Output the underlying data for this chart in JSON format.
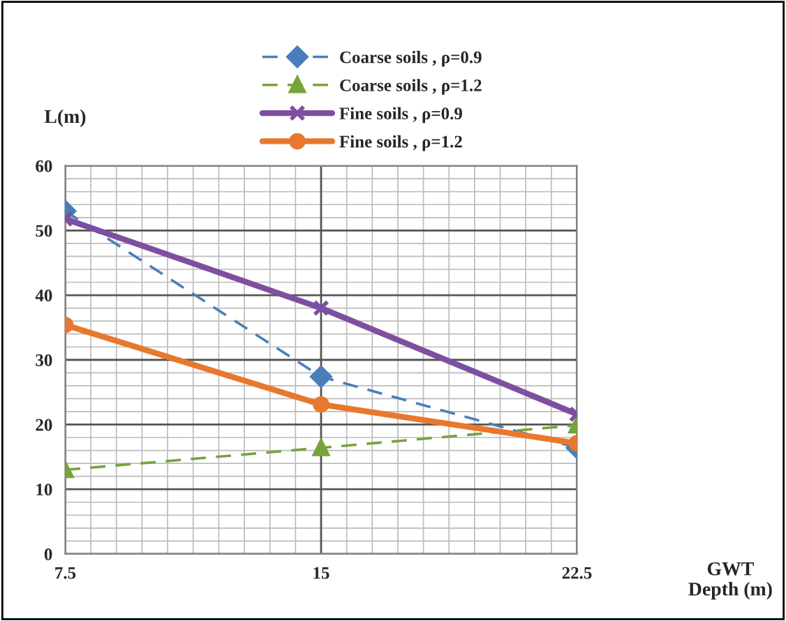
{
  "chart_data": {
    "type": "line",
    "xlabel": "GWT\nDepth (m)",
    "ylabel": "L(m)",
    "x": [
      7.5,
      15,
      22.5
    ],
    "series": [
      {
        "name": "Coarse soils , ρ=0.9",
        "color": "#4a7ebb",
        "values": [
          53,
          27.4,
          16.4
        ],
        "marker": "diamond",
        "line_style": "dashed"
      },
      {
        "name": "Coarse soils , ρ=1.2",
        "color": "#77a33b",
        "values": [
          13,
          16.4,
          19.9
        ],
        "marker": "triangle",
        "line_style": "dashed"
      },
      {
        "name": "Fine soils , ρ=0.9",
        "color": "#7d4fa0",
        "values": [
          51.8,
          38,
          21.6
        ],
        "marker": "cross",
        "line_style": "solid"
      },
      {
        "name": "Fine soils , ρ=1.2",
        "color": "#e8782e",
        "values": [
          35.4,
          23.1,
          17.1
        ],
        "marker": "circle",
        "line_style": "solid"
      }
    ],
    "xlim": [
      7.5,
      22.5
    ],
    "xticks": [
      7.5,
      15,
      22.5
    ],
    "ylim": [
      0,
      60
    ],
    "yticks": [
      0,
      10,
      20,
      30,
      40,
      50,
      60
    ],
    "grid": true,
    "legend": "top"
  }
}
